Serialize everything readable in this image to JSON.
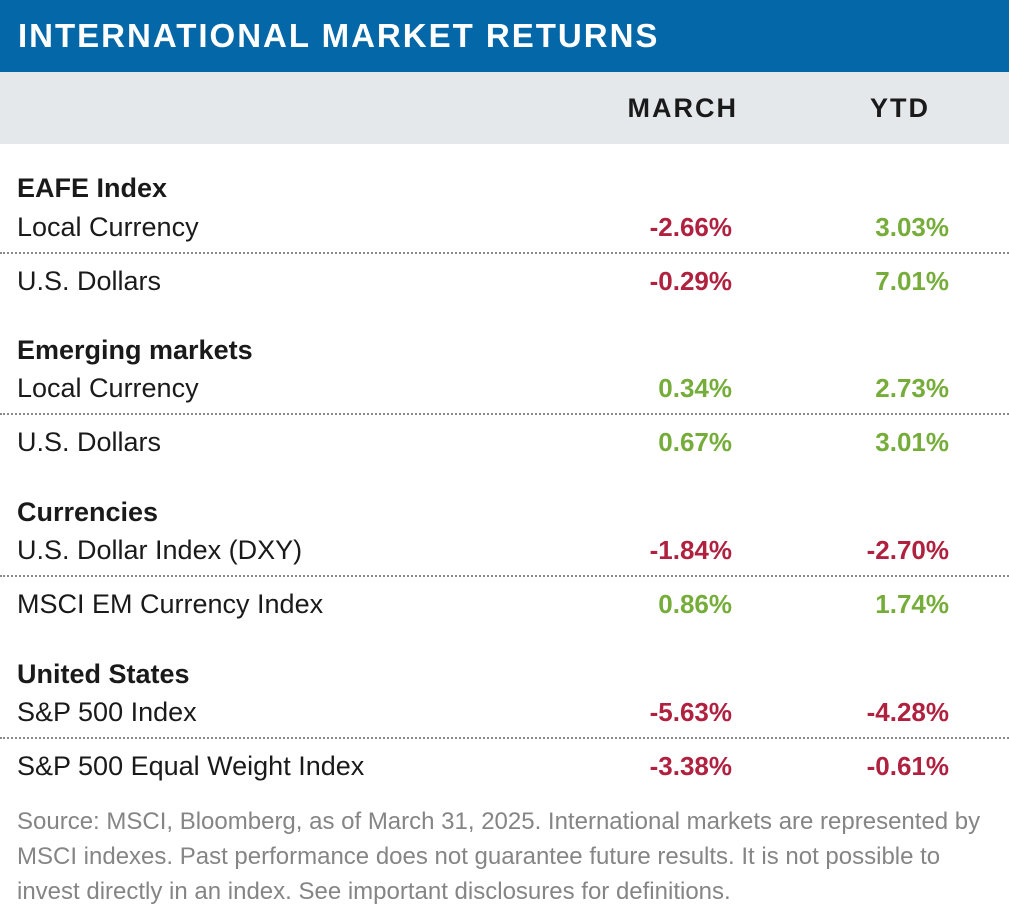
{
  "chart_data": {
    "type": "table",
    "title": "INTERNATIONAL MARKET RETURNS",
    "columns": [
      "MARCH",
      "YTD"
    ],
    "groups": [
      {
        "name": "EAFE Index",
        "rows": [
          {
            "label": "Local Currency",
            "march": "-2.66%",
            "ytd": "3.03%"
          },
          {
            "label": "U.S. Dollars",
            "march": "-0.29%",
            "ytd": "7.01%"
          }
        ]
      },
      {
        "name": "Emerging markets",
        "rows": [
          {
            "label": "Local Currency",
            "march": "0.34%",
            "ytd": "2.73%"
          },
          {
            "label": "U.S. Dollars",
            "march": "0.67%",
            "ytd": "3.01%"
          }
        ]
      },
      {
        "name": "Currencies",
        "rows": [
          {
            "label": "U.S. Dollar Index (DXY)",
            "march": "-1.84%",
            "ytd": "-2.70%"
          },
          {
            "label": "MSCI EM Currency Index",
            "march": "0.86%",
            "ytd": "1.74%"
          }
        ]
      },
      {
        "name": "United States",
        "rows": [
          {
            "label": "S&P 500 Index",
            "march": "-5.63%",
            "ytd": "-4.28%"
          },
          {
            "label": "S&P 500 Equal Weight Index",
            "march": "-3.38%",
            "ytd": "-0.61%"
          }
        ]
      }
    ],
    "source": "Source: MSCI, Bloomberg, as of March 31, 2025. International markets are  represented by MSCI indexes. Past performance does not guarantee future results. It is not possible to invest directly in an index. See important disclosures for definitions."
  },
  "colors": {
    "header_blue": "#0468a8",
    "header_gray": "#e4e8eb",
    "negative": "#b0213f",
    "positive": "#76ad3a",
    "footnote_gray": "#858585"
  }
}
